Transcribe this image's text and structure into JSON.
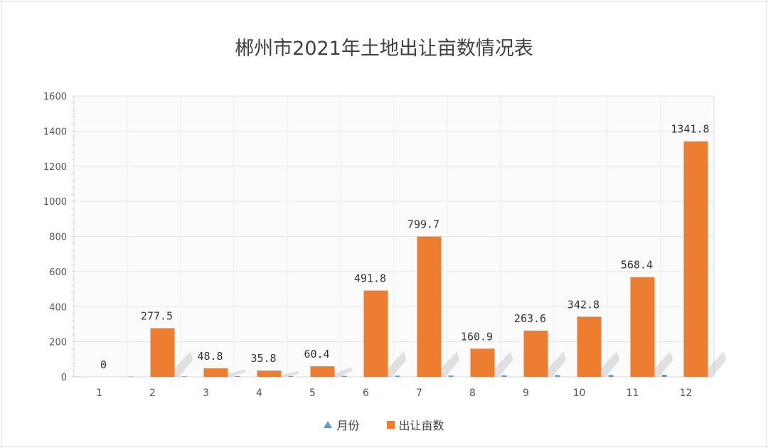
{
  "chart_data": {
    "type": "bar",
    "title": "郴州市2021年土地出让亩数情况表",
    "xlabel": "",
    "ylabel": "",
    "ylim": [
      0,
      1600
    ],
    "yticks": [
      0,
      200,
      400,
      600,
      800,
      1000,
      1200,
      1400,
      1600
    ],
    "categories": [
      "1",
      "2",
      "3",
      "4",
      "5",
      "6",
      "7",
      "8",
      "9",
      "10",
      "11",
      "12"
    ],
    "series": [
      {
        "name": "月份",
        "marker": "triangle",
        "color": "#5b9bd5",
        "values": [
          1,
          2,
          3,
          4,
          5,
          6,
          7,
          8,
          9,
          10,
          11,
          12
        ]
      },
      {
        "name": "出让亩数",
        "marker": "square",
        "color": "#ed7d31",
        "values": [
          0,
          277.5,
          48.8,
          35.8,
          60.4,
          491.8,
          799.7,
          160.9,
          263.6,
          342.8,
          568.4,
          1341.8
        ],
        "labels": [
          "0",
          "277.5",
          "48.8",
          "35.8",
          "60.4",
          "491.8",
          "799.7",
          "160.9",
          "263.6",
          "342.8",
          "568.4",
          "1341.8"
        ]
      }
    ],
    "grid": true,
    "legend_position": "bottom"
  }
}
